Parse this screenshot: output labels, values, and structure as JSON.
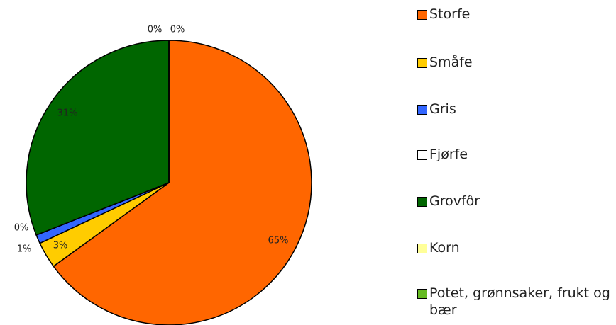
{
  "chart_data": {
    "type": "pie",
    "categories": [
      "Storfe",
      "Småfe",
      "Gris",
      "Fjørfe",
      "Grovfôr",
      "Korn",
      "Potet, grønnsaker, frukt og bær"
    ],
    "values": [
      65,
      3,
      1,
      0,
      31,
      0,
      0
    ],
    "value_labels": [
      "65%",
      "3%",
      "1%",
      "0%",
      "31%",
      "0%",
      "0%"
    ],
    "colors": [
      "#ff6600",
      "#ffcc00",
      "#3366ff",
      "#ffffff",
      "#006600",
      "#ffff99",
      "#66bb22"
    ]
  }
}
